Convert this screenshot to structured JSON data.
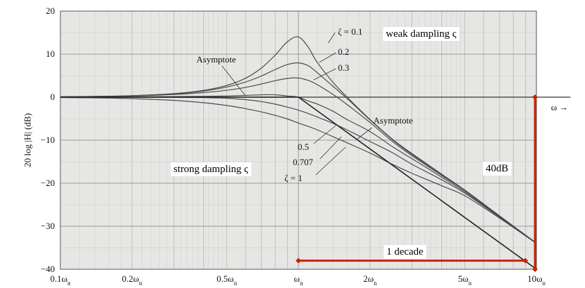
{
  "chart_data": {
    "type": "line",
    "title": "",
    "ylabel": "20 log |H| (dB)",
    "xscale": "log",
    "xlim": [
      0.1,
      10
    ],
    "ylim": [
      -40,
      20
    ],
    "grid": true,
    "x_ticks": [
      {
        "value": 0.1,
        "label": "0.1ω",
        "sub": "n"
      },
      {
        "value": 0.2,
        "label": "0.2ω",
        "sub": "n"
      },
      {
        "value": 0.5,
        "label": "0.5ω",
        "sub": "n"
      },
      {
        "value": 1,
        "label": "ω",
        "sub": "n"
      },
      {
        "value": 2,
        "label": "2ω",
        "sub": "n"
      },
      {
        "value": 5,
        "label": "5ω",
        "sub": "n"
      },
      {
        "value": 10,
        "label": "10ω",
        "sub": "n"
      }
    ],
    "y_ticks": [
      20,
      10,
      0,
      -10,
      -20,
      -30,
      -40
    ],
    "x": [
      0.1,
      0.15,
      0.2,
      0.3,
      0.4,
      0.5,
      0.6,
      0.7,
      0.8,
      0.9,
      1.0,
      1.1,
      1.2,
      1.4,
      1.6,
      2.0,
      2.5,
      3.0,
      4.0,
      5.0,
      7.0,
      10.0
    ],
    "series": [
      {
        "name": "ζ = 0.1",
        "values": [
          0.09,
          0.2,
          0.35,
          0.83,
          1.58,
          2.72,
          4.4,
          6.8,
          9.8,
          12.9,
          14.0,
          11.6,
          8.07,
          3.4,
          0.05,
          -5.2,
          -9.9,
          -13.1,
          -17.9,
          -21.6,
          -27.6,
          -33.9
        ]
      },
      {
        "name": "0.2",
        "values": [
          0.08,
          0.18,
          0.32,
          0.77,
          1.43,
          2.35,
          3.52,
          4.94,
          6.43,
          7.59,
          7.96,
          7.3,
          5.7,
          2.5,
          -0.3,
          -5.3,
          -10.0,
          -13.3,
          -18.0,
          -21.6,
          -27.6,
          -34.0
        ]
      },
      {
        "name": "0.3",
        "values": [
          0.07,
          0.15,
          0.27,
          0.62,
          1.07,
          1.6,
          2.27,
          3.07,
          3.84,
          4.36,
          4.44,
          3.9,
          2.9,
          0.6,
          -1.7,
          -5.9,
          -10.4,
          -13.6,
          -18.2,
          -21.7,
          -27.7,
          -34.0
        ]
      },
      {
        "name": "0.5",
        "values": [
          0.04,
          0.07,
          0.09,
          0.12,
          0.18,
          0.27,
          0.41,
          0.55,
          0.55,
          0.27,
          0.0,
          -0.9,
          -1.6,
          -3.3,
          -5.2,
          -8.0,
          -11.6,
          -14.3,
          -18.6,
          -22.0,
          -27.8,
          -34.0
        ]
      },
      {
        "name": "0.707",
        "values": [
          0.0,
          -0.01,
          -0.03,
          -0.04,
          -0.11,
          -0.26,
          -0.57,
          -1.04,
          -1.63,
          -2.32,
          -3.01,
          -3.8,
          -4.6,
          -6.1,
          -7.6,
          -10.3,
          -13.0,
          -15.6,
          -19.2,
          -22.3,
          -27.9,
          -34.0
        ]
      },
      {
        "name": "ζ = 1",
        "values": [
          -0.09,
          -0.19,
          -0.34,
          -0.75,
          -1.29,
          -1.94,
          -2.67,
          -3.44,
          -4.25,
          -5.08,
          -6.02,
          -6.8,
          -7.6,
          -9.2,
          -10.6,
          -13.0,
          -15.7,
          -17.7,
          -20.6,
          -22.9,
          -28.1,
          -34.0
        ]
      },
      {
        "name": "Asymptote",
        "x": [
          0.1,
          1.0,
          10.0
        ],
        "values": [
          0,
          0,
          -40
        ]
      }
    ],
    "annotations": [
      {
        "text": "ζ = 0.1"
      },
      {
        "text": "0.2"
      },
      {
        "text": "0.3"
      },
      {
        "text": "Asymptote"
      },
      {
        "text": "Asymptote"
      },
      {
        "text": "0.5"
      },
      {
        "text": "0.707"
      },
      {
        "text": "ζ = 1"
      },
      {
        "text": "ω →"
      }
    ]
  },
  "overlay": {
    "weak_label": "weak dampling ς",
    "strong_label": "strong dampling ς",
    "db_label": "40dB",
    "decade_label": "1 decade",
    "marker_color": "#cc2200"
  }
}
